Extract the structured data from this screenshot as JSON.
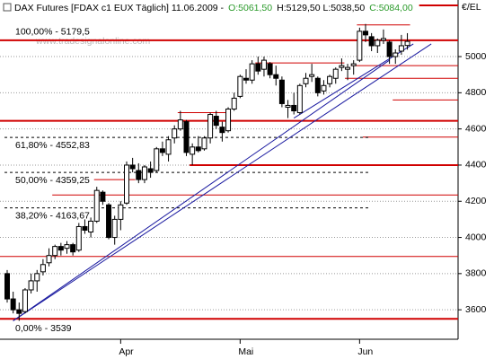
{
  "chart_data": {
    "type": "candlestick",
    "header": {
      "name": "DAX Futures [FDAX c1 EUX  Täglich] 11.06.2009 -",
      "open": "O:5061,50",
      "high_low": "H:5129,50 L:5038,50",
      "close": "C:5084,00"
    },
    "watermark": "www.tradesignalonline.com",
    "y_axis_label": "€/EL",
    "categories": [
      null,
      null,
      null,
      null,
      null,
      null,
      null,
      null,
      null,
      null,
      null,
      null,
      null,
      null,
      null,
      null,
      null,
      null,
      null,
      "Apr",
      null,
      null,
      null,
      null,
      null,
      null,
      null,
      null,
      null,
      null,
      null,
      null,
      null,
      null,
      null,
      null,
      null,
      null,
      null,
      "Mai",
      null,
      null,
      null,
      null,
      null,
      null,
      null,
      null,
      null,
      null,
      null,
      null,
      null,
      null,
      null,
      null,
      null,
      null,
      null,
      "Jun",
      null,
      null,
      null,
      null,
      null,
      null,
      null,
      null
    ],
    "open": [
      3800,
      3660,
      3600,
      3590,
      3710,
      3760,
      3810,
      3860,
      3900,
      3950,
      3940,
      3960,
      3930,
      4060,
      4030,
      4090,
      4250,
      4180,
      4000,
      4100,
      4190,
      4400,
      4370,
      4320,
      4380,
      4370,
      4490,
      4460,
      4550,
      4600,
      4640,
      4460,
      4500,
      4490,
      4550,
      4670,
      4610,
      4590,
      4710,
      4780,
      4880,
      4870,
      4960,
      4930,
      4960,
      4900,
      4870,
      4720,
      4730,
      4690,
      4850,
      4890,
      4880,
      4810,
      4850,
      4880,
      4940,
      4930,
      4950,
      4980,
      5140,
      5110,
      5060,
      5090,
      5080,
      5000,
      5030,
      5061.5
    ],
    "high": [
      3820,
      3700,
      3640,
      3720,
      3800,
      3820,
      3880,
      3940,
      3960,
      3970,
      3980,
      3970,
      4080,
      4100,
      4110,
      4280,
      4260,
      4190,
      4120,
      4200,
      4420,
      4440,
      4410,
      4400,
      4420,
      4500,
      4530,
      4560,
      4620,
      4700,
      4650,
      4520,
      4560,
      4560,
      4690,
      4700,
      4640,
      4720,
      4800,
      4900,
      4930,
      4980,
      5000,
      5000,
      4970,
      4950,
      4890,
      4760,
      4800,
      4850,
      4910,
      4960,
      4890,
      4870,
      4900,
      4940,
      4990,
      4960,
      4980,
      5160,
      5180,
      5130,
      5100,
      5150,
      5090,
      5040,
      5120,
      5129.5
    ],
    "low": [
      3640,
      3580,
      3539,
      3580,
      3690,
      3700,
      3790,
      3840,
      3880,
      3900,
      3910,
      3900,
      3920,
      4020,
      4000,
      4080,
      4180,
      3990,
      3960,
      4040,
      4180,
      4360,
      4300,
      4300,
      4330,
      4360,
      4450,
      4420,
      4520,
      4590,
      4450,
      4400,
      4470,
      4480,
      4520,
      4600,
      4530,
      4580,
      4700,
      4770,
      4850,
      4850,
      4900,
      4890,
      4880,
      4840,
      4720,
      4660,
      4680,
      4680,
      4830,
      4860,
      4780,
      4790,
      4830,
      4850,
      4920,
      4870,
      4900,
      4970,
      5080,
      5030,
      5020,
      5070,
      4960,
      4960,
      5010,
      5038.5
    ],
    "close": [
      3660,
      3600,
      3580,
      3710,
      3760,
      3800,
      3850,
      3900,
      3950,
      3930,
      3960,
      3920,
      4060,
      4040,
      4090,
      4260,
      4200,
      4000,
      4100,
      4180,
      4400,
      4380,
      4320,
      4390,
      4360,
      4490,
      4470,
      4540,
      4600,
      4650,
      4470,
      4500,
      4480,
      4550,
      4680,
      4620,
      4580,
      4710,
      4770,
      4890,
      4870,
      4960,
      4920,
      4980,
      4900,
      4880,
      4740,
      4730,
      4700,
      4840,
      4880,
      4900,
      4800,
      4840,
      4890,
      4930,
      4950,
      4940,
      4960,
      5140,
      5120,
      5060,
      5090,
      5100,
      5000,
      5020,
      5060,
      5084
    ],
    "up_color": "#ffffff",
    "down_color": "#000000",
    "ylim": [
      3437,
      5303
    ],
    "yticks": [
      3600,
      3800,
      4000,
      4200,
      4400,
      4600,
      4800,
      5000
    ],
    "grid": true,
    "fib_levels": [
      {
        "label": "100,00% - 5179,5",
        "value": 5179.5
      },
      {
        "label": "61,80% - 4552,83",
        "value": 4552.83
      },
      {
        "label": "50,00% - 4359,25",
        "value": 4359.25
      },
      {
        "label": "38,20% - 4163,67",
        "value": 4163.67
      },
      {
        "label": "0,00% - 3539",
        "value": 3539
      }
    ],
    "levels": [
      {
        "value": 5090,
        "from": 0,
        "thick": true
      },
      {
        "value": 4645,
        "from": 0,
        "thick": true
      },
      {
        "value": 4400,
        "from": 31,
        "thick": true
      },
      {
        "value": 3550,
        "from": 0,
        "thick": true
      },
      {
        "value": 5283,
        "from": 69,
        "thick": true
      },
      {
        "value": 5175,
        "from": 59,
        "to": 67
      },
      {
        "value": 4965,
        "from": 42,
        "to": 56
      },
      {
        "value": 4950,
        "from": 58
      },
      {
        "value": 4880,
        "from": 57
      },
      {
        "value": 4760,
        "from": 65
      },
      {
        "value": 4690,
        "from": 29,
        "to": 37
      },
      {
        "value": 4555,
        "from": 60
      },
      {
        "value": 4235,
        "from": 8
      },
      {
        "value": 4320,
        "from": 15,
        "to": 21
      },
      {
        "value": 3895,
        "from": 0
      }
    ],
    "trendlines": [
      {
        "from": [
          1,
          3539
        ],
        "to": [
          71,
          5070
        ]
      },
      {
        "from": [
          1,
          3539
        ],
        "to": [
          64,
          4980
        ]
      },
      {
        "from": [
          48,
          4660
        ],
        "to": [
          68,
          5070
        ]
      }
    ],
    "line_color": "#d00000",
    "trend_color": "#1a1aa0"
  }
}
